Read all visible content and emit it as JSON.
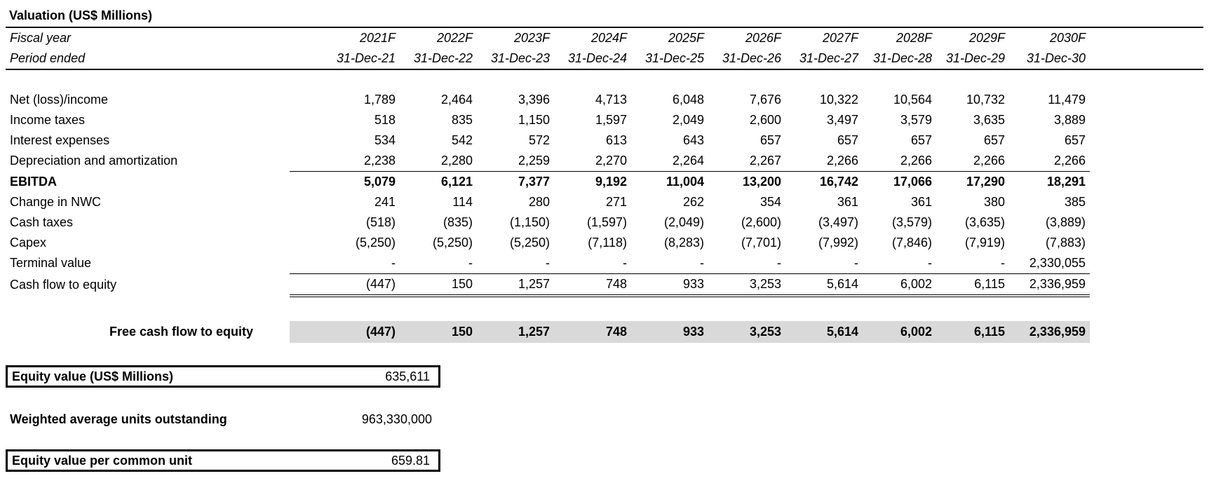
{
  "title": "Valuation (US$ Millions)",
  "header": {
    "fiscal_year_label": "Fiscal year",
    "period_ended_label": "Period ended",
    "years": [
      "2021F",
      "2022F",
      "2023F",
      "2024F",
      "2025F",
      "2026F",
      "2027F",
      "2028F",
      "2029F",
      "2030F"
    ],
    "periods": [
      "31-Dec-21",
      "31-Dec-22",
      "31-Dec-23",
      "31-Dec-24",
      "31-Dec-25",
      "31-Dec-26",
      "31-Dec-27",
      "31-Dec-28",
      "31-Dec-29",
      "31-Dec-30"
    ]
  },
  "rows": {
    "net_income": {
      "label": "Net (loss)/income",
      "values": [
        "1,789",
        "2,464",
        "3,396",
        "4,713",
        "6,048",
        "7,676",
        "10,322",
        "10,564",
        "10,732",
        "11,479"
      ]
    },
    "income_taxes": {
      "label": "Income taxes",
      "values": [
        "518",
        "835",
        "1,150",
        "1,597",
        "2,049",
        "2,600",
        "3,497",
        "3,579",
        "3,635",
        "3,889"
      ]
    },
    "interest": {
      "label": "Interest expenses",
      "values": [
        "534",
        "542",
        "572",
        "613",
        "643",
        "657",
        "657",
        "657",
        "657",
        "657"
      ]
    },
    "dep_amort": {
      "label": "Depreciation and amortization",
      "values": [
        "2,238",
        "2,280",
        "2,259",
        "2,270",
        "2,264",
        "2,267",
        "2,266",
        "2,266",
        "2,266",
        "2,266"
      ]
    },
    "ebitda": {
      "label": "EBITDA",
      "values": [
        "5,079",
        "6,121",
        "7,377",
        "9,192",
        "11,004",
        "13,200",
        "16,742",
        "17,066",
        "17,290",
        "18,291"
      ]
    },
    "nwc": {
      "label": "Change in NWC",
      "values": [
        "241",
        "114",
        "280",
        "271",
        "262",
        "354",
        "361",
        "361",
        "380",
        "385"
      ]
    },
    "cash_taxes": {
      "label": "Cash taxes",
      "values": [
        "(518)",
        "(835)",
        "(1,150)",
        "(1,597)",
        "(2,049)",
        "(2,600)",
        "(3,497)",
        "(3,579)",
        "(3,635)",
        "(3,889)"
      ]
    },
    "capex": {
      "label": "Capex",
      "values": [
        "(5,250)",
        "(5,250)",
        "(5,250)",
        "(7,118)",
        "(8,283)",
        "(7,701)",
        "(7,992)",
        "(7,846)",
        "(7,919)",
        "(7,883)"
      ]
    },
    "terminal": {
      "label": "Terminal value",
      "values": [
        "-",
        "-",
        "-",
        "-",
        "-",
        "-",
        "-",
        "-",
        "-",
        "2,330,055"
      ]
    },
    "cfe": {
      "label": "Cash flow to equity",
      "values": [
        "(447)",
        "150",
        "1,257",
        "748",
        "933",
        "3,253",
        "5,614",
        "6,002",
        "6,115",
        "2,336,959"
      ]
    },
    "fcfe": {
      "label": "Free cash flow to equity",
      "values": [
        "(447)",
        "150",
        "1,257",
        "748",
        "933",
        "3,253",
        "5,614",
        "6,002",
        "6,115",
        "2,336,959"
      ]
    }
  },
  "summary": {
    "equity_value_label": "Equity value (US$ Millions)",
    "equity_value": "635,611",
    "units_label": "Weighted average units outstanding",
    "units_value": "963,330,000",
    "per_unit_label": "Equity value per common unit",
    "per_unit_value": "659.81"
  }
}
